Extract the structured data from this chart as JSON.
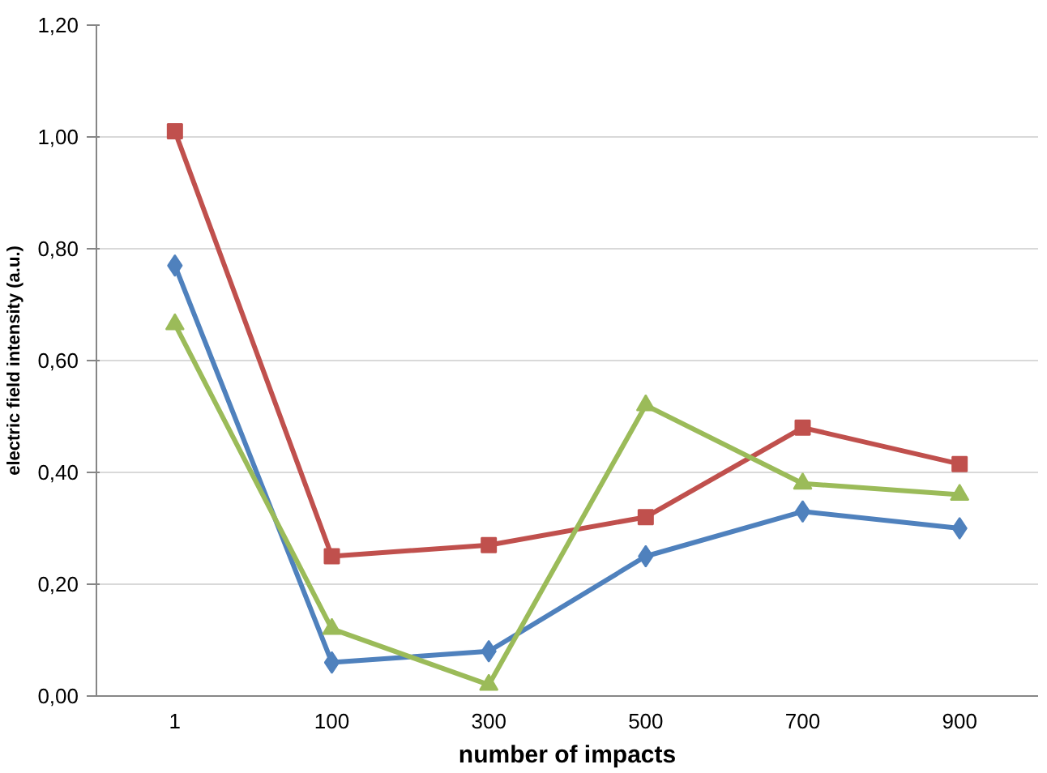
{
  "chart_data": {
    "type": "line",
    "xlabel": "number of impacts",
    "ylabel": "electric field intensity (a.u.)",
    "categories": [
      "1",
      "100",
      "300",
      "500",
      "700",
      "900"
    ],
    "ylim": [
      0,
      1.2
    ],
    "yticks": [
      {
        "value": 0,
        "label": "0,00"
      },
      {
        "value": 0.2,
        "label": "0,20"
      },
      {
        "value": 0.4,
        "label": "0,40"
      },
      {
        "value": 0.6,
        "label": "0,60"
      },
      {
        "value": 0.8,
        "label": "0,80"
      },
      {
        "value": 1.0,
        "label": "1,00"
      },
      {
        "value": 1.2,
        "label": "1,20"
      }
    ],
    "grid": "y",
    "line_style": "solid",
    "series": [
      {
        "color": "#4f81bd",
        "marker": "diamond",
        "values": [
          0.77,
          0.06,
          0.08,
          0.25,
          0.33,
          0.3
        ]
      },
      {
        "color": "#c0504d",
        "marker": "square",
        "values": [
          1.01,
          0.25,
          0.27,
          0.32,
          0.48,
          0.415
        ]
      },
      {
        "color": "#9bbb59",
        "marker": "triangle",
        "values": [
          0.665,
          0.12,
          0.02,
          0.52,
          0.38,
          0.36
        ]
      }
    ]
  }
}
